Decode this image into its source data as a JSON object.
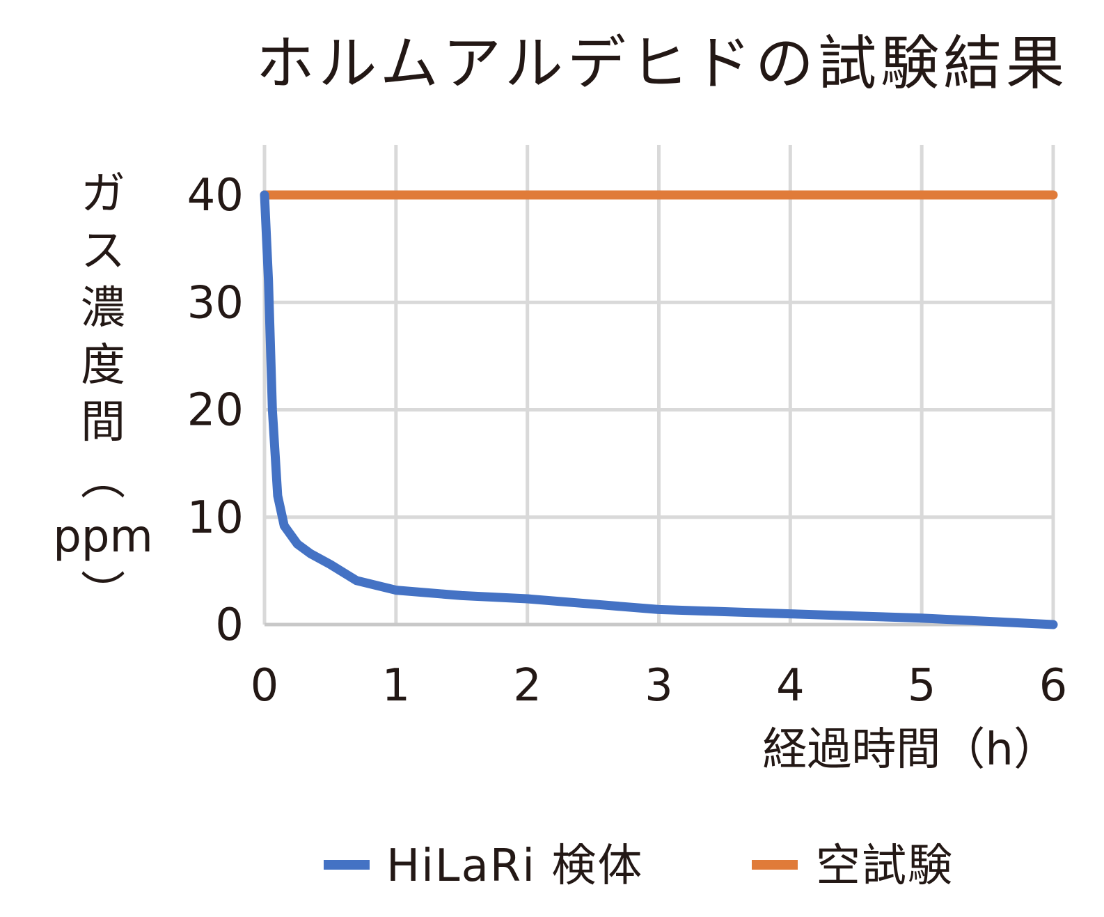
{
  "chart_data": {
    "type": "line",
    "title": "ホルムアルデヒドの試験結果",
    "xlabel": "経過時間（h）",
    "ylabel": "ガス濃度間（ppm）",
    "x_ticks": [
      "0",
      "1",
      "2",
      "3",
      "4",
      "5",
      "6"
    ],
    "y_ticks": [
      "0",
      "10",
      "20",
      "30",
      "40"
    ],
    "xlim": [
      0,
      6
    ],
    "ylim": [
      0,
      40
    ],
    "grid": true,
    "legend_position": "bottom",
    "series": [
      {
        "name": "HiLaRi 検体",
        "color": "#4472c4",
        "x": [
          0,
          0.03,
          0.06,
          0.1,
          0.15,
          0.25,
          0.35,
          0.5,
          0.7,
          1.0,
          1.5,
          2.0,
          2.5,
          3.0,
          3.5,
          4.0,
          4.5,
          5.0,
          5.5,
          6.0
        ],
        "y": [
          40,
          32,
          20,
          12,
          9.2,
          7.5,
          6.6,
          5.6,
          4.1,
          3.2,
          2.7,
          2.4,
          1.9,
          1.4,
          1.2,
          1.0,
          0.8,
          0.6,
          0.3,
          0
        ]
      },
      {
        "name": "空試験",
        "color": "#e07b39",
        "x": [
          0,
          6
        ],
        "y": [
          40,
          40
        ]
      }
    ]
  }
}
